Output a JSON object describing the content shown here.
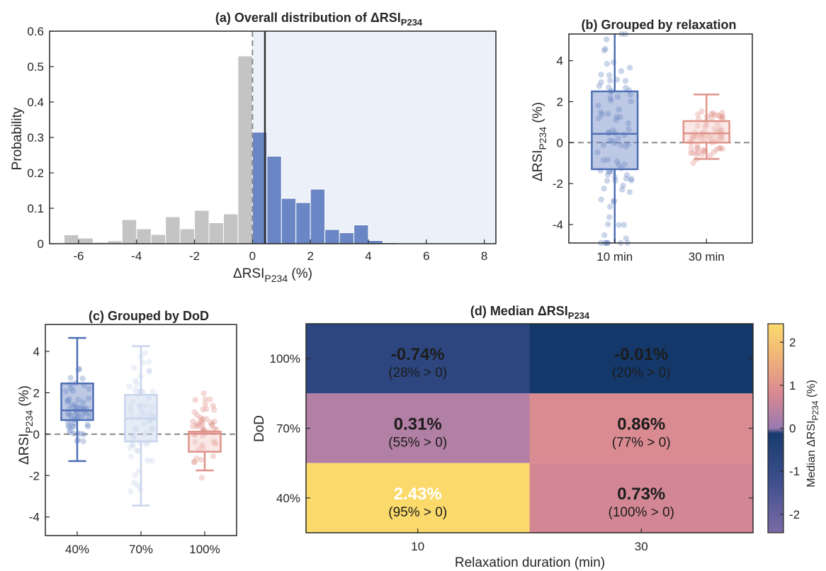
{
  "colors": {
    "blue": "#4f6fb5",
    "blue_fill": "#6b86c4",
    "blue_light": "#c8d4ec",
    "gray": "#c4c4c4",
    "salmon": "#e0938a",
    "salmon_fill": "#f2cdc8",
    "bg_blue": "#ecf0f8",
    "colormap": [
      "#7a6aa5",
      "#3d4f8c",
      "#14386a",
      "#9a7ab0",
      "#d98892",
      "#f0b27a",
      "#fbda6b"
    ]
  },
  "chart_data": [
    {
      "id": "a",
      "type": "bar",
      "title_prefix": "(a) Overall distribution of ",
      "title_delta": "ΔRSI",
      "title_sub": "P234",
      "xlabel_delta": "ΔRSI",
      "xlabel_sub": "P234",
      "xlabel_suffix": " (%)",
      "ylabel": "Probability",
      "xlim": [
        -7,
        8.4
      ],
      "ylim": [
        0,
        0.6
      ],
      "xticks": [
        "-6",
        "-4",
        "-2",
        "0",
        "2",
        "4",
        "6",
        "8"
      ],
      "yticks": [
        "0",
        "0.1",
        "0.2",
        "0.3",
        "0.4",
        "0.5",
        "0.6"
      ],
      "bin_width": 0.5,
      "bins_negative": {
        "left_edges": [
          -6.5,
          -6,
          -5.5,
          -5,
          -4.5,
          -4,
          -3.5,
          -3,
          -2.5,
          -2,
          -1.5,
          -1,
          -0.5
        ],
        "values": [
          0.025,
          0.016,
          0.004,
          0.008,
          0.068,
          0.042,
          0.026,
          0.076,
          0.042,
          0.094,
          0.059,
          0.084,
          0.53
        ]
      },
      "bins_positive": {
        "left_edges": [
          0,
          0.5,
          1,
          1.5,
          2,
          2.5,
          3,
          3.5,
          4,
          4.5,
          5,
          5.5,
          6,
          6.5,
          7,
          7.5
        ],
        "values": [
          0.315,
          0.247,
          0.128,
          0.116,
          0.154,
          0.04,
          0.031,
          0.053,
          0.009,
          0.003,
          0.001,
          0.001,
          0.001,
          0.001,
          0.001,
          0.001
        ]
      },
      "zero_line": 0,
      "median_line": 0.43,
      "grid": false
    },
    {
      "id": "b",
      "type": "box",
      "title": "(b) Grouped by relaxation",
      "ylabel_delta": "ΔRSI",
      "ylabel_sub": "P234",
      "ylabel_suffix": " (%)",
      "categories": [
        "10 min",
        "30 min"
      ],
      "ylim": [
        -4.9,
        5.3
      ],
      "yticks": [
        "-4",
        "-2",
        "0",
        "2",
        "4"
      ],
      "boxes": [
        {
          "q1": -1.3,
          "median": 0.43,
          "q3": 2.5,
          "whisker_low": -4.9,
          "whisker_high": 5.3,
          "n_points": 90,
          "spread": 4.5
        },
        {
          "q1": 0.0,
          "median": 0.45,
          "q3": 1.05,
          "whisker_low": -0.8,
          "whisker_high": 2.35,
          "n_points": 70,
          "spread": 1.1
        }
      ],
      "zero_line": 0
    },
    {
      "id": "c",
      "type": "box",
      "title": "(c) Grouped by DoD",
      "ylabel_delta": "ΔRSI",
      "ylabel_sub": "P234",
      "ylabel_suffix": " (%)",
      "categories": [
        "40%",
        "70%",
        "100%"
      ],
      "ylim": [
        -4.9,
        5.3
      ],
      "yticks": [
        "-4",
        "-2",
        "0",
        "2",
        "4"
      ],
      "boxes": [
        {
          "q1": 0.68,
          "median": 1.15,
          "q3": 2.45,
          "whisker_low": -1.3,
          "whisker_high": 4.65,
          "n_points": 60,
          "spread": 1.4
        },
        {
          "q1": -0.35,
          "median": 0.75,
          "q3": 1.9,
          "whisker_low": -3.45,
          "whisker_high": 4.25,
          "n_points": 60,
          "spread": 2.5
        },
        {
          "q1": -0.85,
          "median": 0.02,
          "q3": 0.12,
          "whisker_low": -1.75,
          "whisker_high": 0.12,
          "n_points": 50,
          "spread": 1.6
        }
      ],
      "zero_line": 0
    },
    {
      "id": "d",
      "type": "heatmap",
      "title_prefix": "(d) Median ",
      "title_delta": "ΔRSI",
      "title_sub": "P234",
      "xlabel": "Relaxation duration (min)",
      "ylabel": "DoD",
      "x": [
        "10",
        "30"
      ],
      "y": [
        "100%",
        "70%",
        "40%"
      ],
      "cells": [
        [
          {
            "value": -0.74,
            "label": "-0.74%",
            "sub": "(28% > 0)"
          },
          {
            "value": -0.01,
            "label": "-0.01%",
            "sub": "(20% > 0)"
          }
        ],
        [
          {
            "value": 0.31,
            "label": "0.31%",
            "sub": "(55% > 0)"
          },
          {
            "value": 0.86,
            "label": "0.86%",
            "sub": "(77% > 0)"
          }
        ],
        [
          {
            "value": 2.43,
            "label": "2.43%",
            "sub": "(95% > 0)"
          },
          {
            "value": 0.73,
            "label": "0.73%",
            "sub": "(100% > 0)"
          }
        ]
      ],
      "colorbar": {
        "range": [
          -2.43,
          2.43
        ],
        "ticks": [
          "2",
          "1",
          "0",
          "-1",
          "-2"
        ],
        "label_prefix": "Median ",
        "label_delta": "ΔRSI",
        "label_sub": "P234",
        "label_suffix": " (%)"
      }
    }
  ]
}
